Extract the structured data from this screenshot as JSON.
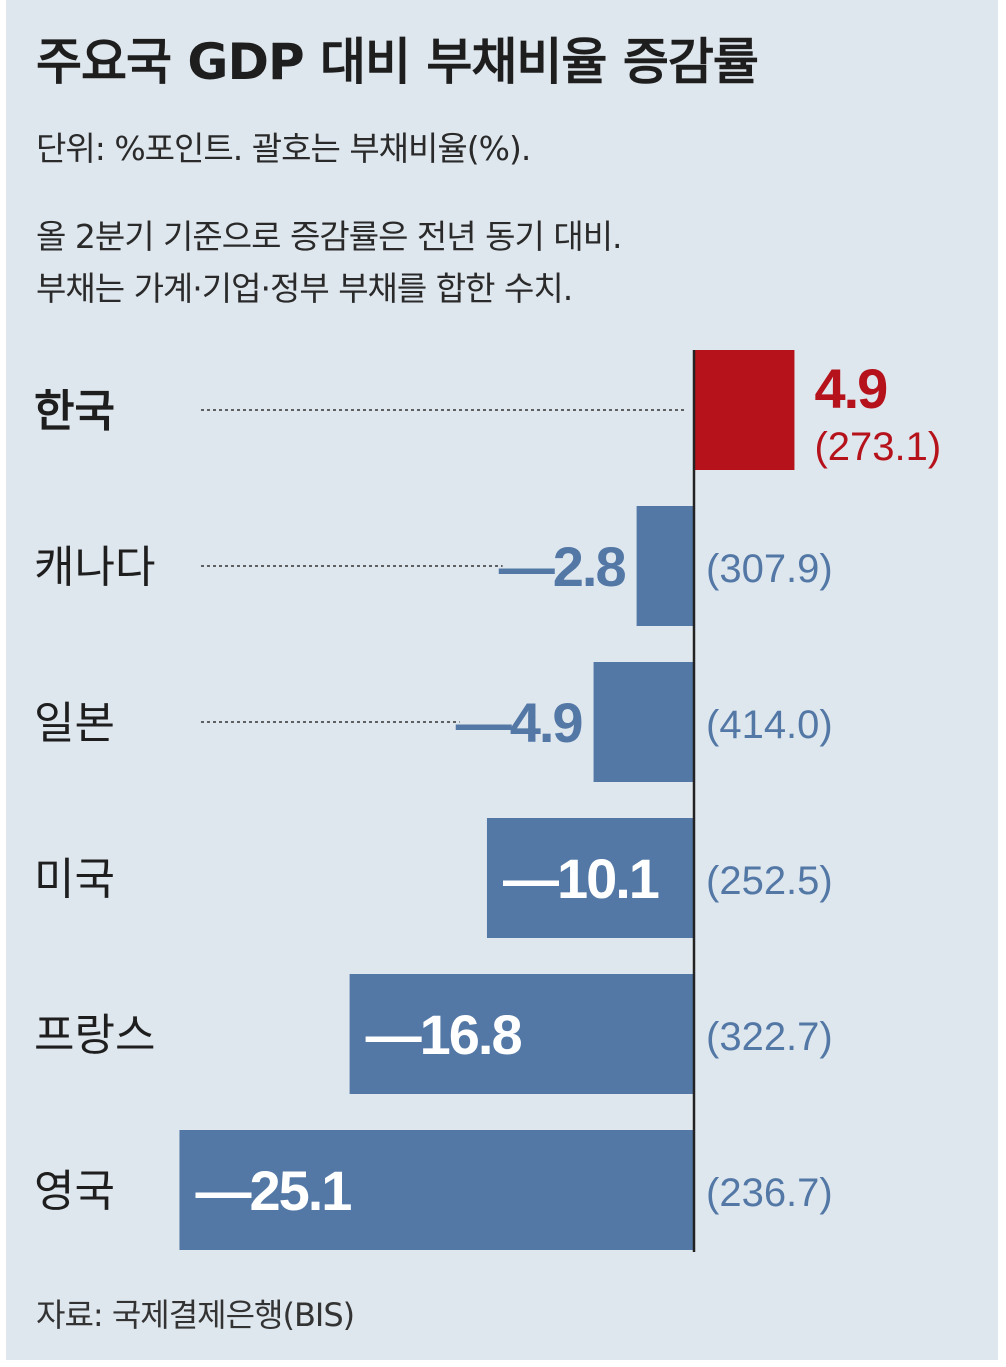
{
  "header": {
    "title": "주요국 GDP 대비 부채비율 증감률",
    "unit_note": "단위: %포인트. 괄호는 부채비율(%).",
    "note_line1": "올 2분기 기준으로 증감률은 전년 동기 대비.",
    "note_line2": "부채는 가계·기업·정부 부채를 합한 수치."
  },
  "source": "자료: 국제결제은행(BIS)",
  "colors": {
    "positive": "#b5121b",
    "negative": "#5378a6",
    "negative_text": "#5378a6",
    "background": "#dfe7ee"
  },
  "chart_data": {
    "type": "bar",
    "orientation": "horizontal",
    "title": "주요국 GDP 대비 부채비율 증감률",
    "unit": "%포인트",
    "categories": [
      "한국",
      "캐나다",
      "일본",
      "미국",
      "프랑스",
      "영국"
    ],
    "values": [
      4.9,
      -2.8,
      -4.9,
      -10.1,
      -16.8,
      -25.1
    ],
    "value_labels": [
      "4.9",
      "—2.8",
      "—4.9",
      "—10.1",
      "—16.8",
      "—25.1"
    ],
    "debt_ratio": [
      273.1,
      307.9,
      414.0,
      252.5,
      322.7,
      236.7
    ],
    "debt_ratio_labels": [
      "(273.1)",
      "(307.9)",
      "(414.0)",
      "(252.5)",
      "(322.7)",
      "(236.7)"
    ],
    "highlight": "한국"
  }
}
